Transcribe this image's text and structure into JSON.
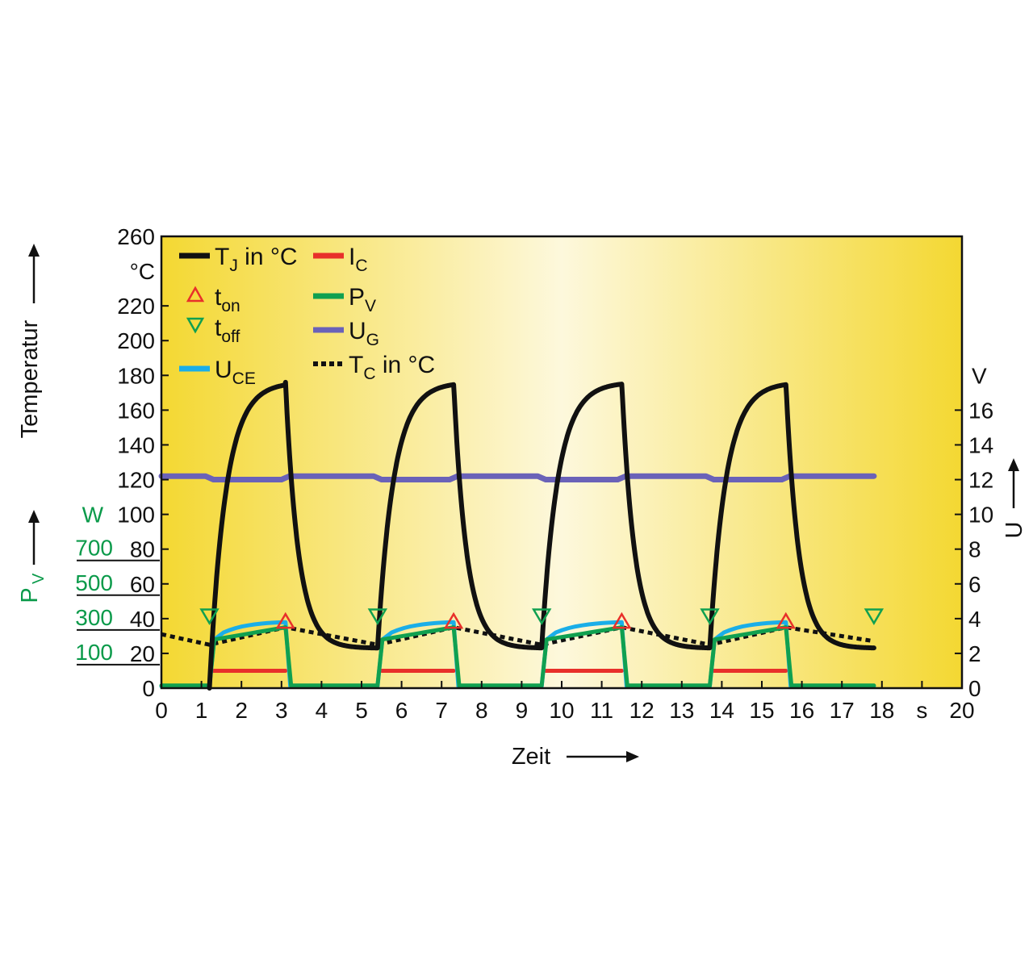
{
  "chart_data": {
    "type": "line",
    "xlabel": "Zeit",
    "x_unit": "s",
    "xlim": [
      0,
      20
    ],
    "x_ticks": [
      "0",
      "1",
      "2",
      "3",
      "4",
      "5",
      "6",
      "7",
      "8",
      "9",
      "10",
      "11",
      "12",
      "13",
      "14",
      "15",
      "16",
      "17",
      "18",
      "s",
      "20"
    ],
    "y_left": {
      "label": "Temperatur",
      "unit": "°C",
      "range": [
        0,
        260
      ],
      "ticks": [
        "0",
        "20",
        "40",
        "60",
        "80",
        "100",
        "120",
        "140",
        "160",
        "180",
        "200",
        "220"
      ],
      "top_tick": "260"
    },
    "y_right": {
      "label": "U",
      "unit": "V",
      "range": [
        0,
        26
      ],
      "ticks": [
        "0",
        "2",
        "4",
        "6",
        "8",
        "10",
        "12",
        "14",
        "16"
      ]
    },
    "y_pv": {
      "label": "P",
      "label_sub": "V",
      "unit": "W",
      "ticks": [
        "100",
        "300",
        "500",
        "700"
      ],
      "tick_temp_equiv": [
        20,
        40,
        60,
        80
      ]
    },
    "legend": [
      {
        "key": "tj",
        "text": "T",
        "sub": "J",
        "suffix": " in °C",
        "color": "#111111",
        "style": "line"
      },
      {
        "key": "ton",
        "text": "t",
        "sub": "on",
        "suffix": "",
        "color": "#e8302a",
        "style": "triangle-up"
      },
      {
        "key": "toff",
        "text": "t",
        "sub": "off",
        "suffix": "",
        "color": "#10a050",
        "style": "triangle-down"
      },
      {
        "key": "uce",
        "text": "U",
        "sub": "CE",
        "suffix": "",
        "color": "#1aaee8",
        "style": "line"
      },
      {
        "key": "ic",
        "text": "I",
        "sub": "C",
        "suffix": "",
        "color": "#e8302a",
        "style": "line"
      },
      {
        "key": "pv",
        "text": "P",
        "sub": "V",
        "suffix": "",
        "color": "#10a050",
        "style": "line"
      },
      {
        "key": "ug",
        "text": "U",
        "sub": "G",
        "suffix": "",
        "color": "#6a62b8",
        "style": "line"
      },
      {
        "key": "tc",
        "text": "T",
        "sub": "C",
        "suffix": " in °C",
        "color": "#111111",
        "style": "dotted"
      }
    ],
    "cycles": [
      {
        "on": 1.2,
        "off": 3.1
      },
      {
        "on": 5.4,
        "off": 7.3
      },
      {
        "on": 9.5,
        "off": 11.5
      },
      {
        "on": 13.7,
        "off": 15.6
      }
    ],
    "end_time": 17.8,
    "ton_markers": [
      [
        3.1,
        38
      ],
      [
        7.3,
        38
      ],
      [
        11.5,
        38
      ],
      [
        15.6,
        38
      ]
    ],
    "toff_markers": [
      [
        1.2,
        42
      ],
      [
        5.4,
        42
      ],
      [
        9.5,
        42
      ],
      [
        13.7,
        42
      ],
      [
        17.8,
        42
      ]
    ],
    "series_params": {
      "tj": {
        "t_min": 23,
        "t_max": 176,
        "rise_tau": 0.4,
        "fall_tau": 0.32
      },
      "tc": {
        "start": 31,
        "low": 25,
        "high": 35
      },
      "ug": {
        "value_on": 12.0,
        "value_off": 12.2
      },
      "ic": {
        "value": 10
      },
      "uce": {
        "on_start": 32,
        "on_end": 38
      },
      "pv": {
        "on_start": 28,
        "on_end": 35
      }
    },
    "colors": {
      "bg_yellow": "#f4d832",
      "bg_light": "#fdf8d8",
      "tj": "#111111",
      "ic": "#e8302a",
      "pv": "#10a050",
      "ug": "#6a62b8",
      "uce": "#1aaee8",
      "tc": "#111111",
      "green_axis": "#0a9a4a"
    }
  }
}
